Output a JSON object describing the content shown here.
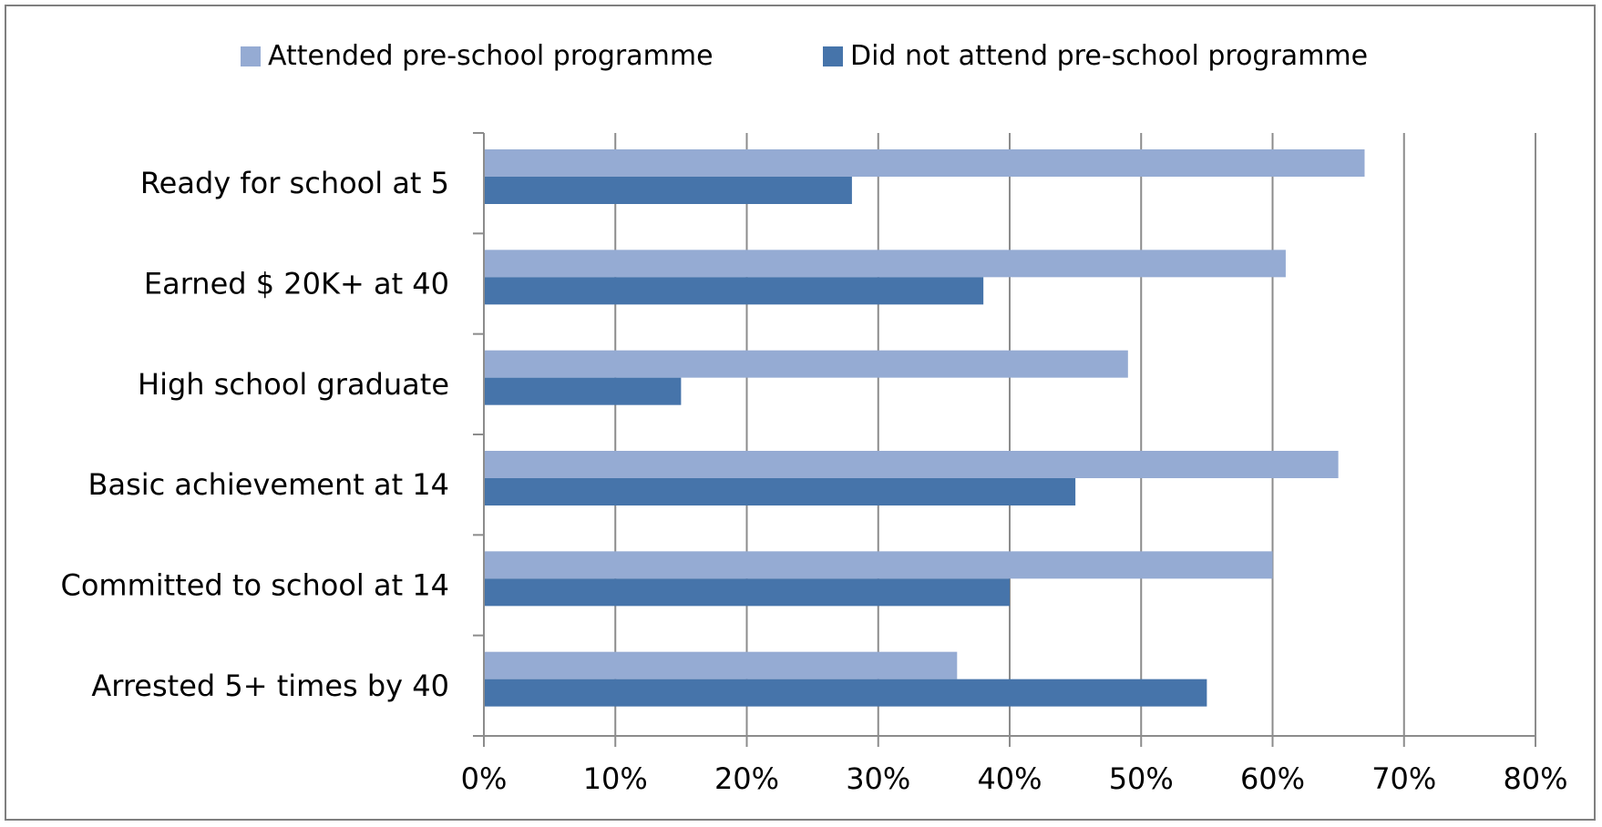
{
  "chart_data": {
    "type": "bar",
    "orientation": "horizontal",
    "title": "",
    "xlabel": "",
    "ylabel": "",
    "categories": [
      "Ready for school at 5",
      "Earned $ 20K+ at 40",
      "High school graduate",
      "Basic achievement at 14",
      "Committed to school at 14",
      "Arrested 5+ times by 40"
    ],
    "series": [
      {
        "name": "Attended pre-school programme",
        "color": "#95abd3",
        "values": [
          67,
          61,
          49,
          65,
          60,
          36
        ]
      },
      {
        "name": "Did not attend pre-school programme",
        "color": "#4674aa",
        "values": [
          28,
          38,
          15,
          45,
          40,
          55
        ]
      }
    ],
    "xlim": [
      0,
      80
    ],
    "xticks": [
      0,
      10,
      20,
      30,
      40,
      50,
      60,
      70,
      80
    ],
    "xtick_labels": [
      "0%",
      "10%",
      "20%",
      "30%",
      "40%",
      "50%",
      "60%",
      "70%",
      "80%"
    ],
    "grid": true,
    "legend_position": "top"
  }
}
